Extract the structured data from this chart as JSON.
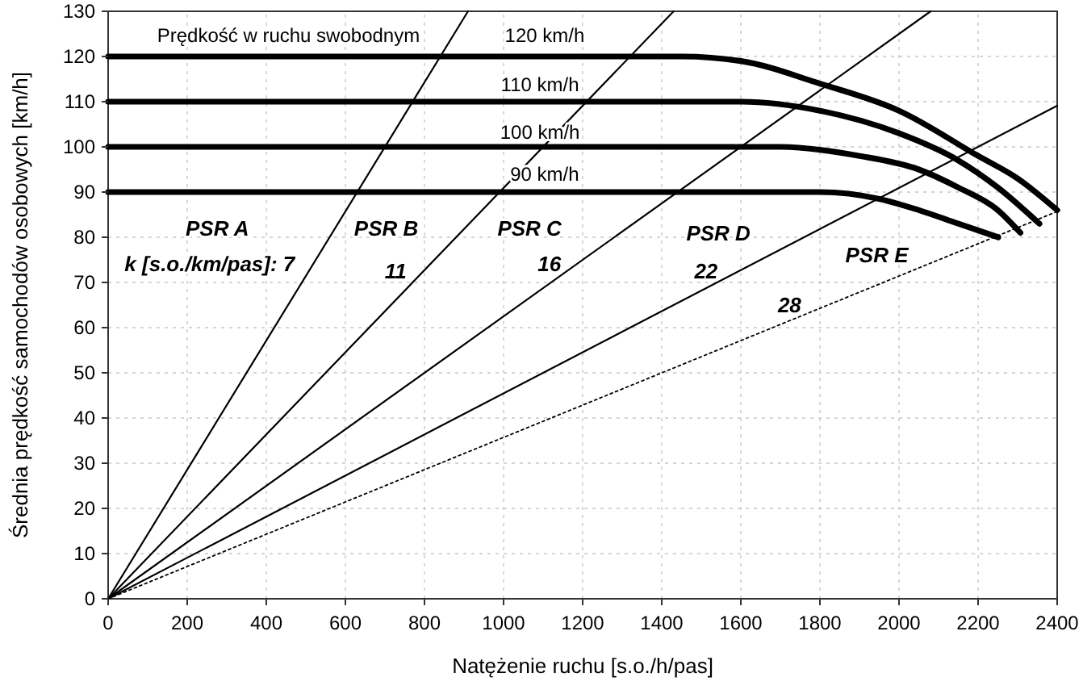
{
  "chart_data": {
    "type": "line",
    "xlabel": "Natężenie ruchu   [s.o./h/pas]",
    "ylabel": "Średnia prędkość samochodów osobowych   [km/h]",
    "xlim": [
      0,
      2400
    ],
    "xticks": [
      0,
      200,
      400,
      600,
      800,
      1000,
      1200,
      1400,
      1600,
      1800,
      2000,
      2200,
      2400
    ],
    "ylim": [
      0,
      130
    ],
    "yticks": [
      0,
      10,
      20,
      30,
      40,
      50,
      60,
      70,
      80,
      90,
      100,
      110,
      120,
      130
    ],
    "grid": true,
    "marker": "none",
    "series": [
      {
        "color": "#000000",
        "x": [
          0,
          1450,
          1600,
          1800,
          2000,
          2200,
          2300,
          2400
        ],
        "values": [
          120,
          120,
          119,
          114,
          108,
          98,
          93,
          86
        ]
      },
      {
        "color": "#000000",
        "x": [
          0,
          1600,
          1800,
          2000,
          2150,
          2250,
          2355
        ],
        "values": [
          110,
          110,
          108,
          103,
          97,
          91,
          83
        ]
      },
      {
        "color": "#000000",
        "x": [
          0,
          1700,
          1900,
          2050,
          2150,
          2250,
          2307
        ],
        "values": [
          100,
          100,
          98,
          95,
          91,
          86,
          81
        ]
      },
      {
        "color": "#000000",
        "x": [
          0,
          1800,
          1950,
          2050,
          2150,
          2251
        ],
        "values": [
          90,
          90,
          88.5,
          86,
          83,
          80
        ]
      },
      {
        "color": "#000000",
        "line_style": "solid",
        "x": [
          0,
          910
        ],
        "values": [
          0,
          130
        ]
      },
      {
        "color": "#000000",
        "line_style": "solid",
        "x": [
          0,
          1430
        ],
        "values": [
          0,
          130
        ]
      },
      {
        "color": "#000000",
        "line_style": "solid",
        "x": [
          0,
          2080
        ],
        "values": [
          0,
          130
        ]
      },
      {
        "color": "#000000",
        "line_style": "solid",
        "x": [
          0,
          2400
        ],
        "values": [
          0,
          109.1
        ]
      },
      {
        "color": "#000000",
        "line_style": "dotted",
        "x": [
          0,
          2400
        ],
        "values": [
          0,
          85.7
        ]
      }
    ],
    "annotations": [
      "Prędkość w ruchu swobodnym",
      "120 km/h",
      "110 km/h",
      "100 km/h",
      "90 km/h",
      "PSR A",
      "PSR B",
      "PSR C",
      "PSR D",
      "PSR E",
      "k [s.o./km/pas]: 7",
      "11",
      "16",
      "22",
      "28"
    ]
  }
}
